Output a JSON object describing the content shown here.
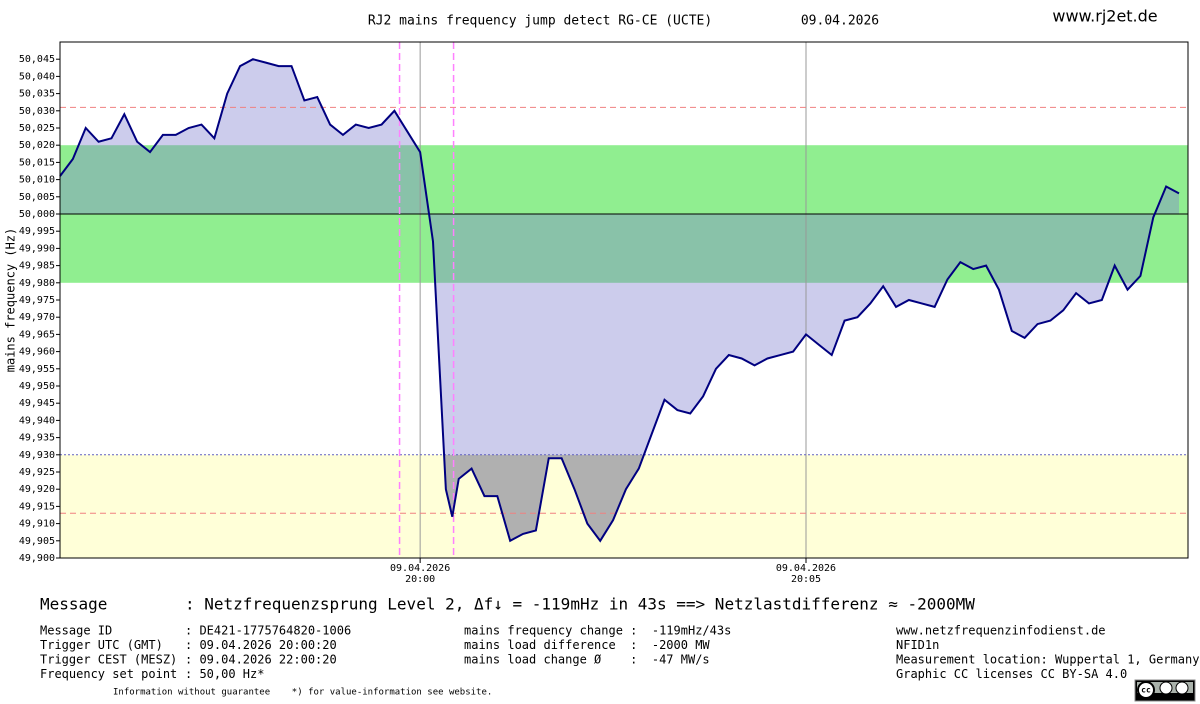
{
  "chart_data": {
    "type": "line",
    "title": "RJ2 mains frequency jump detect RG-CE (UCTE)",
    "date": "09.04.2026",
    "site": "www.rj2et.de",
    "y_label": "mains frequency (Hz)",
    "x": [
      "19:55:20",
      "19:55:30",
      "19:55:40",
      "19:55:50",
      "19:56:00",
      "19:56:10",
      "19:56:20",
      "19:56:30",
      "19:56:40",
      "19:56:50",
      "19:57:00",
      "19:57:10",
      "19:57:20",
      "19:57:30",
      "19:57:40",
      "19:57:50",
      "19:58:00",
      "19:58:10",
      "19:58:20",
      "19:58:30",
      "19:58:40",
      "19:58:50",
      "19:59:00",
      "19:59:10",
      "19:59:20",
      "19:59:30",
      "19:59:40",
      "19:59:50",
      "20:00:00",
      "20:00:10",
      "20:00:20",
      "20:00:25",
      "20:00:30",
      "20:00:40",
      "20:00:50",
      "20:01:00",
      "20:01:10",
      "20:01:20",
      "20:01:30",
      "20:01:40",
      "20:01:50",
      "20:02:00",
      "20:02:10",
      "20:02:20",
      "20:02:30",
      "20:02:40",
      "20:02:50",
      "20:03:00",
      "20:03:10",
      "20:03:20",
      "20:03:30",
      "20:03:40",
      "20:03:50",
      "20:04:00",
      "20:04:10",
      "20:04:20",
      "20:04:30",
      "20:04:40",
      "20:04:50",
      "20:05:00",
      "20:05:10",
      "20:05:20",
      "20:05:30",
      "20:05:40",
      "20:05:50",
      "20:06:00",
      "20:06:10",
      "20:06:20",
      "20:06:30",
      "20:06:40",
      "20:06:50",
      "20:07:00",
      "20:07:10",
      "20:07:20",
      "20:07:30",
      "20:07:40",
      "20:07:50",
      "20:08:00",
      "20:08:10",
      "20:08:20",
      "20:08:30",
      "20:08:40",
      "20:08:50",
      "20:09:00",
      "20:09:10",
      "20:09:20",
      "20:09:30",
      "20:09:40",
      "20:09:50"
    ],
    "series": [
      {
        "name": "mains frequency",
        "color": "#000080",
        "values": [
          50.011,
          50.016,
          50.025,
          50.021,
          50.022,
          50.029,
          50.021,
          50.018,
          50.023,
          50.023,
          50.025,
          50.026,
          50.022,
          50.035,
          50.043,
          50.045,
          50.044,
          50.043,
          50.043,
          50.033,
          50.034,
          50.026,
          50.023,
          50.026,
          50.025,
          50.026,
          50.03,
          50.024,
          50.018,
          49.992,
          49.92,
          49.912,
          49.923,
          49.926,
          49.918,
          49.918,
          49.905,
          49.907,
          49.908,
          49.929,
          49.929,
          49.92,
          49.91,
          49.905,
          49.911,
          49.92,
          49.926,
          49.936,
          49.946,
          49.943,
          49.942,
          49.947,
          49.955,
          49.959,
          49.958,
          49.956,
          49.958,
          49.959,
          49.96,
          49.965,
          49.962,
          49.959,
          49.969,
          49.97,
          49.974,
          49.979,
          49.973,
          49.975,
          49.974,
          49.973,
          49.981,
          49.986,
          49.984,
          49.985,
          49.978,
          49.966,
          49.964,
          49.968,
          49.969,
          49.972,
          49.977,
          49.974,
          49.975,
          49.985,
          49.978,
          49.982,
          49.999,
          50.008,
          50.006
        ]
      }
    ],
    "fill_base": 50.0,
    "fill_color": "#8080d0",
    "low_fill_base": 49.93,
    "low_fill_color": "#b0b0b0",
    "bands": [
      {
        "from": 49.98,
        "to": 50.02,
        "color": "#90ee90"
      },
      {
        "from": 49.9,
        "to": 49.93,
        "color": "#ffffd8"
      }
    ],
    "reference_lines": [
      {
        "value": 50.031,
        "color": "#f08080",
        "style": "dashed"
      },
      {
        "value": 49.913,
        "color": "#f08080",
        "style": "dashed"
      },
      {
        "value": 49.93,
        "color": "#6060c0",
        "style": "dotted"
      },
      {
        "value": 50.0,
        "color": "#000000",
        "style": "solid"
      }
    ],
    "markers": [
      {
        "x": "19:59:44",
        "color": "#ff80ff"
      },
      {
        "x": "20:00:26",
        "color": "#ff80ff"
      }
    ],
    "xlim": [
      "19:55:20",
      "20:09:57"
    ],
    "xticks": [
      {
        "value": "20:00:00",
        "label": [
          "09.04.2026",
          "20:00"
        ]
      },
      {
        "value": "20:05:00",
        "label": [
          "09.04.2026",
          "20:05"
        ]
      }
    ],
    "ylim": [
      49.9,
      50.05
    ],
    "yticks": [
      {
        "value": 49.9,
        "label": "49,900"
      },
      {
        "value": 49.905,
        "label": "49,905"
      },
      {
        "value": 49.91,
        "label": "49,910"
      },
      {
        "value": 49.915,
        "label": "49,915"
      },
      {
        "value": 49.92,
        "label": "49,920"
      },
      {
        "value": 49.925,
        "label": "49,925"
      },
      {
        "value": 49.93,
        "label": "49,930"
      },
      {
        "value": 49.935,
        "label": "49,935"
      },
      {
        "value": 49.94,
        "label": "49,940"
      },
      {
        "value": 49.945,
        "label": "49,945"
      },
      {
        "value": 49.95,
        "label": "49,950"
      },
      {
        "value": 49.955,
        "label": "49,955"
      },
      {
        "value": 49.96,
        "label": "49,960"
      },
      {
        "value": 49.965,
        "label": "49,965"
      },
      {
        "value": 49.97,
        "label": "49,970"
      },
      {
        "value": 49.975,
        "label": "49,975"
      },
      {
        "value": 49.98,
        "label": "49,980"
      },
      {
        "value": 49.985,
        "label": "49,985"
      },
      {
        "value": 49.99,
        "label": "49,990"
      },
      {
        "value": 49.995,
        "label": "49,995"
      },
      {
        "value": 50.0,
        "label": "50,000"
      },
      {
        "value": 50.005,
        "label": "50,005"
      },
      {
        "value": 50.01,
        "label": "50,010"
      },
      {
        "value": 50.015,
        "label": "50,015"
      },
      {
        "value": 50.02,
        "label": "50,020"
      },
      {
        "value": 50.025,
        "label": "50,025"
      },
      {
        "value": 50.03,
        "label": "50,030"
      },
      {
        "value": 50.035,
        "label": "50,035"
      },
      {
        "value": 50.04,
        "label": "50,040"
      },
      {
        "value": 50.045,
        "label": "50,045"
      }
    ]
  },
  "message": {
    "label": "Message",
    "text": ": Netzfrequenzsprung Level 2, Δf↓ = -119mHz in 43s ==> Netzlastdifferenz ≈ -2000MW"
  },
  "details": {
    "left": [
      [
        "Message ID",
        ": DE421-1775764820-1006"
      ],
      [
        "Trigger UTC (GMT)",
        ": 09.04.2026 20:00:20"
      ],
      [
        "Trigger CEST (MESZ)",
        ": 09.04.2026 22:00:20"
      ],
      [
        "Frequency set point",
        ": 50,00 Hz*"
      ]
    ],
    "middle": [
      "mains frequency change :  -119mHz/43s",
      "mains load difference  :  -2000 MW",
      "mains load change Ø    :  -47 MW/s"
    ],
    "right": [
      "www.netzfrequenzinfodienst.de",
      "NFID1n",
      "Measurement location: Wuppertal 1, Germany",
      "Graphic CC licenses CC BY-SA 4.0"
    ]
  },
  "footnote": "Information without guarantee    *) for value-information see website."
}
